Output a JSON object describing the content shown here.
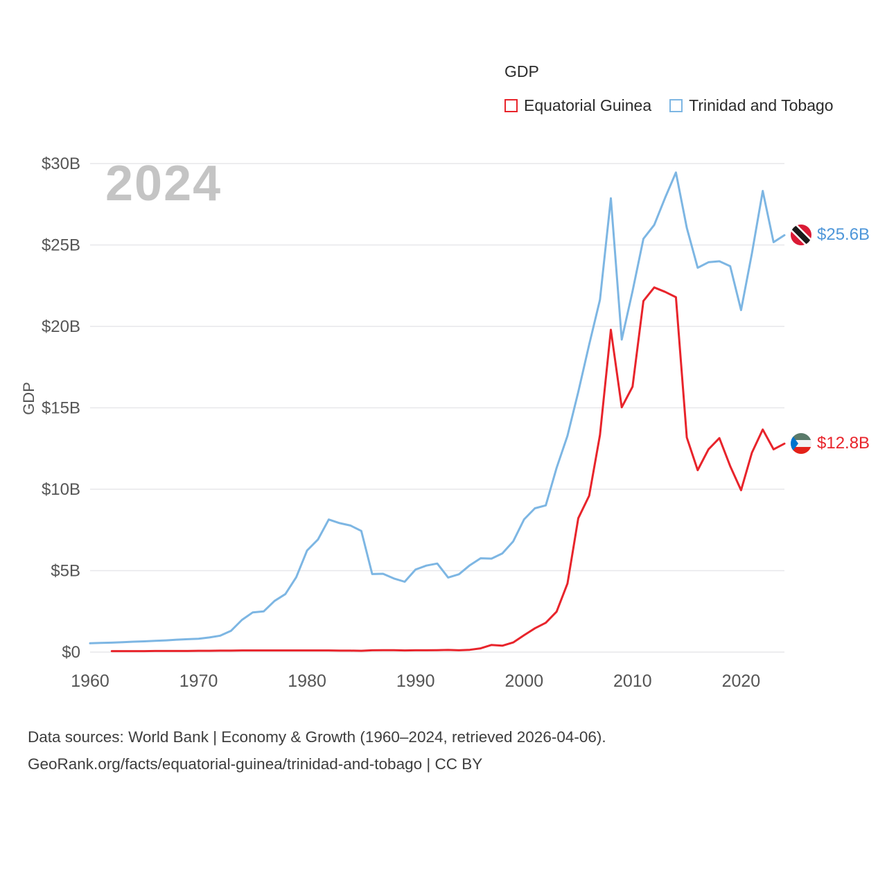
{
  "watermark_year": "2024",
  "legend": {
    "title": "GDP",
    "items": [
      {
        "label": "Equatorial Guinea",
        "color": "#e8242b"
      },
      {
        "label": "Trinidad and Tobago",
        "color": "#7db6e3"
      }
    ]
  },
  "end_labels": [
    {
      "series": "Trinidad and Tobago",
      "text": "$25.6B",
      "value": 25.6,
      "color": "#4e96d9",
      "flag": "trinidad-and-tobago-flag-icon"
    },
    {
      "series": "Equatorial Guinea",
      "text": "$12.8B",
      "value": 12.8,
      "color": "#e8242b",
      "flag": "equatorial-guinea-flag-icon"
    }
  ],
  "footer": {
    "line1": "Data sources: World Bank | Economy & Growth (1960–2024, retrieved 2026-04-06).",
    "line2": "GeoRank.org/facts/equatorial-guinea/trinidad-and-tobago | CC BY"
  },
  "chart_data": {
    "type": "line",
    "title": "GDP",
    "xlabel": "",
    "ylabel": "GDP",
    "xlim": [
      1960,
      2024
    ],
    "ylim": [
      0,
      30
    ],
    "grid": "horizontal",
    "legend_position": "top-right",
    "yticks": [
      {
        "value": 0,
        "label": "$0"
      },
      {
        "value": 5,
        "label": "$5B"
      },
      {
        "value": 10,
        "label": "$10B"
      },
      {
        "value": 15,
        "label": "$15B"
      },
      {
        "value": 20,
        "label": "$20B"
      },
      {
        "value": 25,
        "label": "$25B"
      },
      {
        "value": 30,
        "label": "$30B"
      }
    ],
    "xticks": [
      1960,
      1970,
      1980,
      1990,
      2000,
      2010,
      2020
    ],
    "x": [
      1960,
      1961,
      1962,
      1963,
      1964,
      1965,
      1966,
      1967,
      1968,
      1969,
      1970,
      1971,
      1972,
      1973,
      1974,
      1975,
      1976,
      1977,
      1978,
      1979,
      1980,
      1981,
      1982,
      1983,
      1984,
      1985,
      1986,
      1987,
      1988,
      1989,
      1990,
      1991,
      1992,
      1993,
      1994,
      1995,
      1996,
      1997,
      1998,
      1999,
      2000,
      2001,
      2002,
      2003,
      2004,
      2005,
      2006,
      2007,
      2008,
      2009,
      2010,
      2011,
      2012,
      2013,
      2014,
      2015,
      2016,
      2017,
      2018,
      2019,
      2020,
      2021,
      2022,
      2023,
      2024
    ],
    "series": [
      {
        "name": "Equatorial Guinea",
        "color": "#e8242b",
        "values": [
          null,
          null,
          0.06,
          0.06,
          0.06,
          0.06,
          0.07,
          0.07,
          0.07,
          0.07,
          0.08,
          0.08,
          0.09,
          0.09,
          0.1,
          0.1,
          0.1,
          0.1,
          0.1,
          0.1,
          0.1,
          0.1,
          0.1,
          0.09,
          0.09,
          0.08,
          0.11,
          0.12,
          0.12,
          0.1,
          0.11,
          0.11,
          0.12,
          0.13,
          0.11,
          0.14,
          0.23,
          0.44,
          0.39,
          0.59,
          1.04,
          1.46,
          1.8,
          2.48,
          4.21,
          8.22,
          9.6,
          13.33,
          19.79,
          15.03,
          16.3,
          21.56,
          22.39,
          22.12,
          21.79,
          13.18,
          11.17,
          12.45,
          13.14,
          11.42,
          9.94,
          12.24,
          13.67,
          12.45,
          12.8
        ]
      },
      {
        "name": "Trinidad and Tobago",
        "color": "#7db6e3",
        "values": [
          0.54,
          0.56,
          0.58,
          0.61,
          0.64,
          0.66,
          0.69,
          0.72,
          0.76,
          0.79,
          0.82,
          0.9,
          1.01,
          1.31,
          1.98,
          2.44,
          2.5,
          3.14,
          3.56,
          4.6,
          6.24,
          6.91,
          8.14,
          7.92,
          7.77,
          7.44,
          4.79,
          4.81,
          4.52,
          4.32,
          5.07,
          5.31,
          5.44,
          4.58,
          4.78,
          5.33,
          5.76,
          5.74,
          6.06,
          6.8,
          8.15,
          8.83,
          9.01,
          11.31,
          13.28,
          15.98,
          18.88,
          21.64,
          27.87,
          19.19,
          22.16,
          25.38,
          26.23,
          27.9,
          29.45,
          26.05,
          23.6,
          23.94,
          24.0,
          23.7,
          21.0,
          24.47,
          28.32,
          25.17,
          25.6
        ]
      }
    ]
  }
}
